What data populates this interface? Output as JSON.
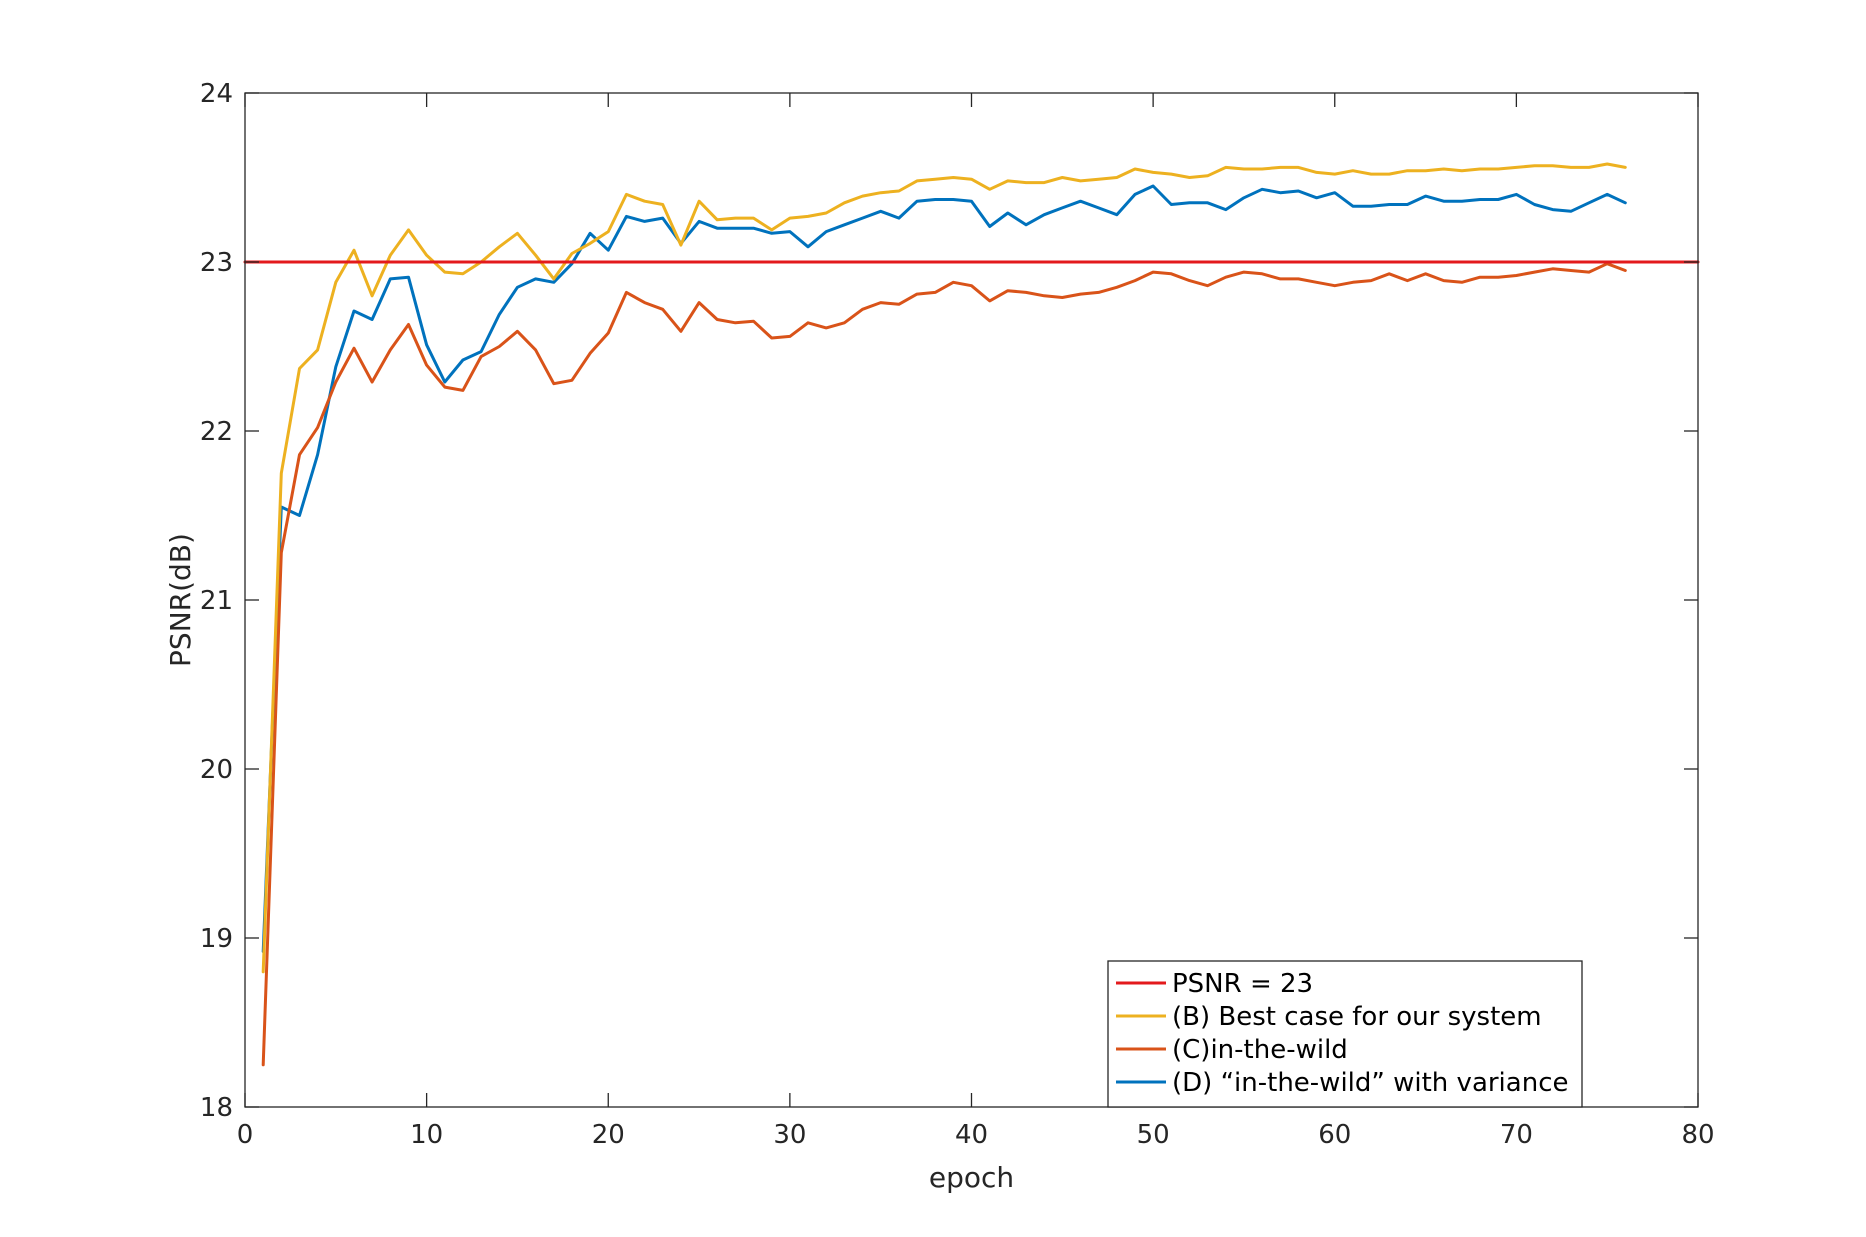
{
  "chart_data": {
    "type": "line",
    "title": "",
    "xlabel": "epoch",
    "ylabel": "PSNR(dB)",
    "xlim": [
      0,
      80
    ],
    "ylim": [
      18,
      24
    ],
    "xticks": [
      0,
      10,
      20,
      30,
      40,
      50,
      60,
      70,
      80
    ],
    "yticks": [
      18,
      19,
      20,
      21,
      22,
      23,
      24
    ],
    "grid": false,
    "legend_position": "bottom-right",
    "series": [
      {
        "name": "PSNR = 23",
        "color": "#e31a1c",
        "x": [
          0,
          80
        ],
        "y": [
          23,
          23
        ]
      },
      {
        "name": "(B) Best case for our system",
        "color": "#edb120",
        "x": [
          1,
          2,
          3,
          4,
          5,
          6,
          7,
          8,
          9,
          10,
          11,
          12,
          13,
          14,
          15,
          16,
          17,
          18,
          19,
          20,
          21,
          22,
          23,
          24,
          25,
          26,
          27,
          28,
          29,
          30,
          31,
          32,
          33,
          34,
          35,
          36,
          37,
          38,
          39,
          40,
          41,
          42,
          43,
          44,
          45,
          46,
          47,
          48,
          49,
          50,
          51,
          52,
          53,
          54,
          55,
          56,
          57,
          58,
          59,
          60,
          61,
          62,
          63,
          64,
          65,
          66,
          67,
          68,
          69,
          70,
          71,
          72,
          73,
          74,
          75,
          76
        ],
        "y": [
          18.8,
          21.75,
          22.37,
          22.48,
          22.88,
          23.07,
          22.8,
          23.04,
          23.19,
          23.04,
          22.94,
          22.93,
          23.0,
          23.09,
          23.17,
          23.04,
          22.9,
          23.05,
          23.11,
          23.18,
          23.4,
          23.36,
          23.34,
          23.1,
          23.36,
          23.25,
          23.26,
          23.26,
          23.19,
          23.26,
          23.27,
          23.29,
          23.35,
          23.39,
          23.41,
          23.42,
          23.48,
          23.49,
          23.5,
          23.49,
          23.43,
          23.48,
          23.47,
          23.47,
          23.5,
          23.48,
          23.49,
          23.5,
          23.55,
          23.53,
          23.52,
          23.5,
          23.51,
          23.56,
          23.55,
          23.55,
          23.56,
          23.56,
          23.53,
          23.52,
          23.54,
          23.52,
          23.52,
          23.54,
          23.54,
          23.55,
          23.54,
          23.55,
          23.55,
          23.56,
          23.57,
          23.57,
          23.56,
          23.56,
          23.58,
          23.56
        ]
      },
      {
        "name": "(C)in-the-wild",
        "color": "#d95319",
        "x": [
          1,
          2,
          3,
          4,
          5,
          6,
          7,
          8,
          9,
          10,
          11,
          12,
          13,
          14,
          15,
          16,
          17,
          18,
          19,
          20,
          21,
          22,
          23,
          24,
          25,
          26,
          27,
          28,
          29,
          30,
          31,
          32,
          33,
          34,
          35,
          36,
          37,
          38,
          39,
          40,
          41,
          42,
          43,
          44,
          45,
          46,
          47,
          48,
          49,
          50,
          51,
          52,
          53,
          54,
          55,
          56,
          57,
          58,
          59,
          60,
          61,
          62,
          63,
          64,
          65,
          66,
          67,
          68,
          69,
          70,
          71,
          72,
          73,
          74,
          75,
          76
        ],
        "y": [
          18.25,
          21.28,
          21.86,
          22.02,
          22.29,
          22.49,
          22.29,
          22.48,
          22.63,
          22.39,
          22.26,
          22.24,
          22.44,
          22.5,
          22.59,
          22.48,
          22.28,
          22.3,
          22.46,
          22.58,
          22.82,
          22.76,
          22.72,
          22.59,
          22.76,
          22.66,
          22.64,
          22.65,
          22.55,
          22.56,
          22.64,
          22.61,
          22.64,
          22.72,
          22.76,
          22.75,
          22.81,
          22.82,
          22.88,
          22.86,
          22.77,
          22.83,
          22.82,
          22.8,
          22.79,
          22.81,
          22.82,
          22.85,
          22.89,
          22.94,
          22.93,
          22.89,
          22.86,
          22.91,
          22.94,
          22.93,
          22.9,
          22.9,
          22.88,
          22.86,
          22.88,
          22.89,
          22.93,
          22.89,
          22.93,
          22.89,
          22.88,
          22.91,
          22.91,
          22.92,
          22.94,
          22.96,
          22.95,
          22.94,
          22.99,
          22.95
        ]
      },
      {
        "name": "(D) “in-the-wild” with variance",
        "color": "#0072bd",
        "x": [
          1,
          2,
          3,
          4,
          5,
          6,
          7,
          8,
          9,
          10,
          11,
          12,
          13,
          14,
          15,
          16,
          17,
          18,
          19,
          20,
          21,
          22,
          23,
          24,
          25,
          26,
          27,
          28,
          29,
          30,
          31,
          32,
          33,
          34,
          35,
          36,
          37,
          38,
          39,
          40,
          41,
          42,
          43,
          44,
          45,
          46,
          47,
          48,
          49,
          50,
          51,
          52,
          53,
          54,
          55,
          56,
          57,
          58,
          59,
          60,
          61,
          62,
          63,
          64,
          65,
          66,
          67,
          68,
          69,
          70,
          71,
          72,
          73,
          74,
          75,
          76
        ],
        "y": [
          18.92,
          21.55,
          21.5,
          21.86,
          22.38,
          22.71,
          22.66,
          22.9,
          22.91,
          22.51,
          22.29,
          22.42,
          22.47,
          22.69,
          22.85,
          22.9,
          22.88,
          22.99,
          23.17,
          23.07,
          23.27,
          23.24,
          23.26,
          23.11,
          23.24,
          23.2,
          23.2,
          23.2,
          23.17,
          23.18,
          23.09,
          23.18,
          23.22,
          23.26,
          23.3,
          23.26,
          23.36,
          23.37,
          23.37,
          23.36,
          23.21,
          23.29,
          23.22,
          23.28,
          23.32,
          23.36,
          23.32,
          23.28,
          23.4,
          23.45,
          23.34,
          23.35,
          23.35,
          23.31,
          23.38,
          23.43,
          23.41,
          23.42,
          23.38,
          23.41,
          23.33,
          23.33,
          23.34,
          23.34,
          23.39,
          23.36,
          23.36,
          23.37,
          23.37,
          23.4,
          23.34,
          23.31,
          23.3,
          23.35,
          23.4,
          23.35
        ]
      }
    ]
  }
}
